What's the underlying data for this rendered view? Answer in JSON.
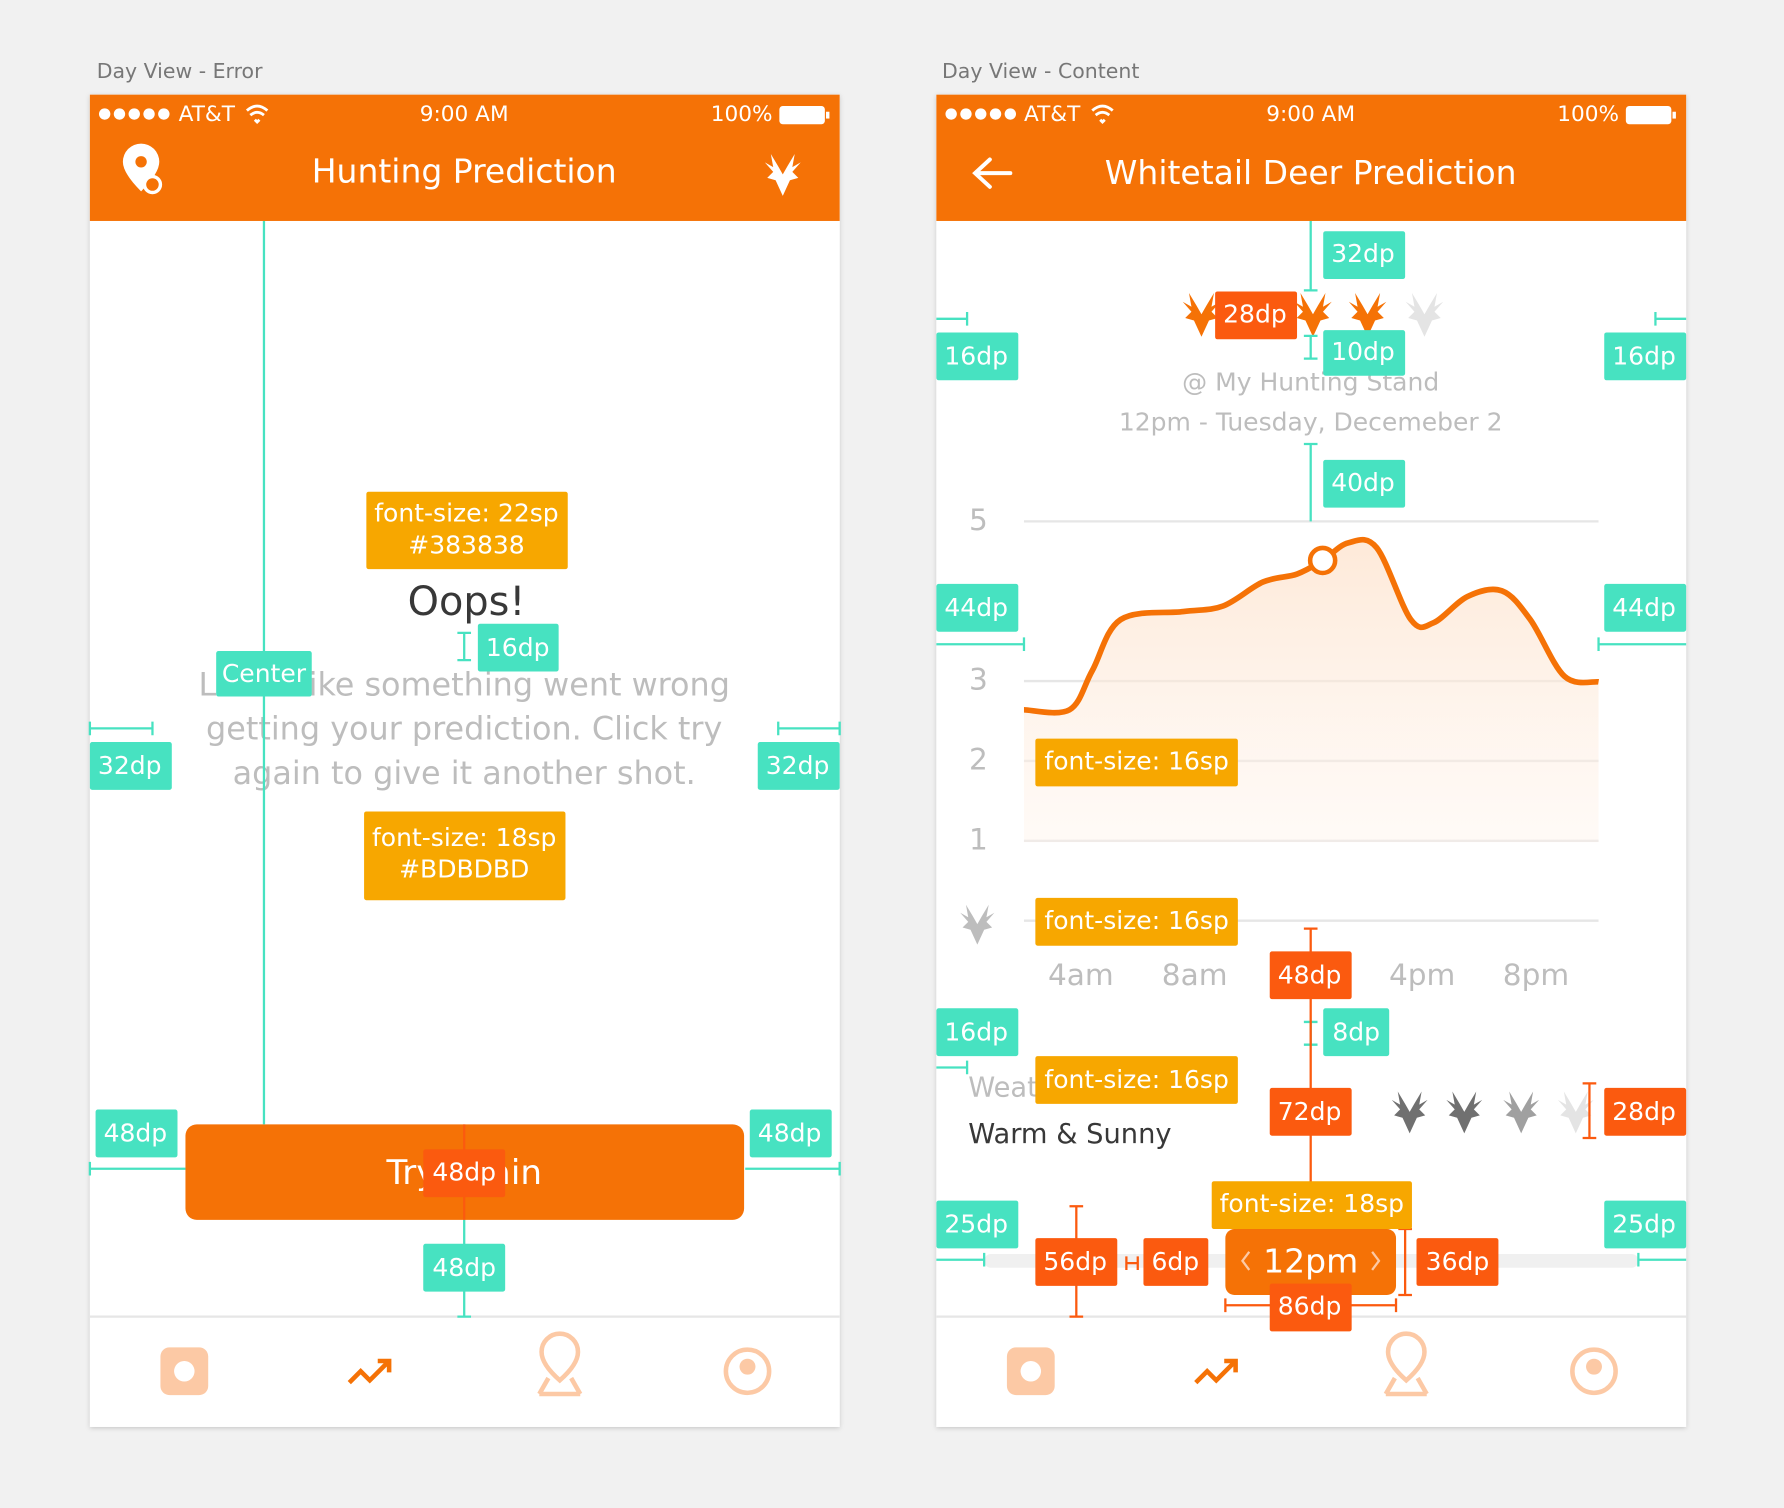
{
  "screens": [
    {
      "caption": "Day View - Error",
      "status": {
        "carrier": "AT&T",
        "time": "9:00 AM",
        "battery": "100%"
      },
      "title": "Hunting Prediction",
      "heading": "Oops!",
      "message": [
        "Looks like something went wrong",
        "getting your prediction. Click try",
        "again to give it another shot."
      ],
      "button": "Try again",
      "annotations": [
        "font-size: 22sp",
        "#383838",
        "16dp",
        "Center",
        "32dp",
        "32dp",
        "font-size: 18sp",
        "#BDBDBD",
        "48dp",
        "48dp",
        "48dp",
        "48dp"
      ]
    },
    {
      "caption": "Day View - Content",
      "status": {
        "carrier": "AT&T",
        "time": "9:00 AM",
        "battery": "100%"
      },
      "title": "Whitetail Deer Prediction",
      "location": "@ My Hunting Stand",
      "time_label": "12pm - Tuesday, Decemeber 2",
      "chart_data": {
        "type": "line",
        "color": "#f57206",
        "x": [
          2,
          3.6,
          4.4,
          5.4,
          7.6,
          9,
          10.4,
          11.6,
          12.5,
          13.4,
          14.4,
          15.6,
          16.4,
          17.6,
          18.8,
          19.8,
          21,
          22.2
        ],
        "values": [
          2.64,
          2.64,
          3.13,
          3.77,
          3.87,
          3.94,
          4.24,
          4.34,
          4.51,
          4.73,
          4.67,
          3.77,
          3.73,
          4.06,
          4.13,
          3.77,
          3.06,
          2.99
        ],
        "xlim": [
          2,
          22.2
        ],
        "ylim": [
          0,
          5
        ],
        "yticks": [
          1,
          2,
          3,
          5
        ],
        "xticks": [
          {
            "value": 4,
            "label": "4am"
          },
          {
            "value": 8,
            "label": "8am"
          },
          {
            "value": 16,
            "label": "4pm"
          },
          {
            "value": 20,
            "label": "8pm"
          }
        ],
        "grid": true
      },
      "weather_label": "Weather",
      "weather": "Warm & Sunny",
      "slider": "12pm",
      "annotations": [
        "32dp",
        "28dp",
        "10dp",
        "16dp",
        "16dp",
        "40dp",
        "44dp",
        "44dp",
        "font-size: 16sp",
        "font-size: 16sp",
        "48dp",
        "16dp",
        "8dp",
        "font-size: 16sp",
        "72dp",
        "28dp",
        "25dp",
        "25dp",
        "font-size: 18sp",
        "56dp",
        "6dp",
        "36dp",
        "86dp"
      ]
    }
  ]
}
